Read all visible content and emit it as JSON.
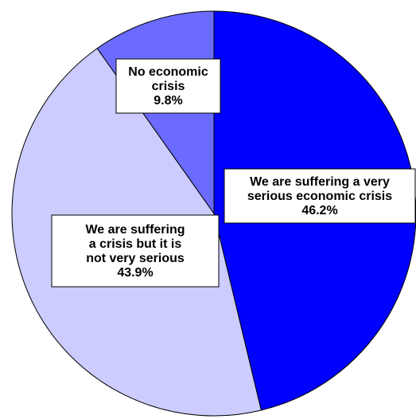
{
  "chart_data": {
    "type": "pie",
    "start_angle_deg": 0,
    "direction": "clockwise",
    "slices": [
      {
        "label_lines": [
          "We are suffering a very",
          "serious economic crisis"
        ],
        "value": 46.2,
        "value_label": "46.2%",
        "color": "#0000ff"
      },
      {
        "label_lines": [
          "We are suffering",
          "a crisis but it is",
          "not very serious"
        ],
        "value": 43.9,
        "value_label": "43.9%",
        "color": "#ccccff"
      },
      {
        "label_lines": [
          "No economic",
          "crisis"
        ],
        "value": 9.8,
        "value_label": "9.8%",
        "color": "#6b6bff"
      }
    ]
  }
}
